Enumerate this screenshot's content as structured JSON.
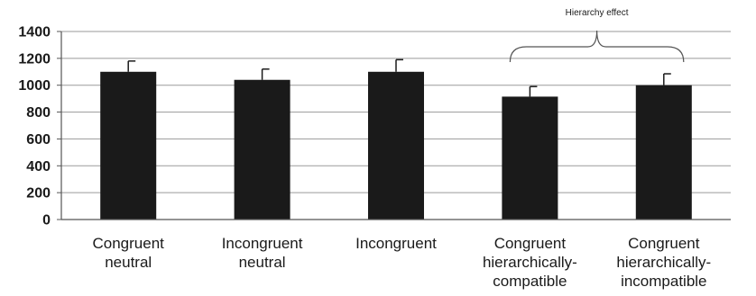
{
  "chart_data": {
    "type": "bar",
    "categories": [
      [
        "Congruent",
        "neutral"
      ],
      [
        "Incongruent",
        "neutral"
      ],
      [
        "Incongruent"
      ],
      [
        "Congruent",
        "hierarchically-",
        "compatible"
      ],
      [
        "Congruent",
        "hierarchically-",
        "incompatible"
      ]
    ],
    "values": [
      1100,
      1040,
      1100,
      915,
      1000
    ],
    "errors": [
      80,
      80,
      90,
      75,
      85
    ],
    "yticks": [
      0,
      200,
      400,
      600,
      800,
      1000,
      1200,
      1400
    ],
    "ylim": [
      0,
      1400
    ],
    "grid": true,
    "colors": {
      "bar": "#1a1a1a",
      "grid": "#9a9a9a",
      "axis": "#555555"
    },
    "annotation": {
      "text": "Hierarchy effect",
      "span": [
        3,
        4
      ]
    }
  }
}
